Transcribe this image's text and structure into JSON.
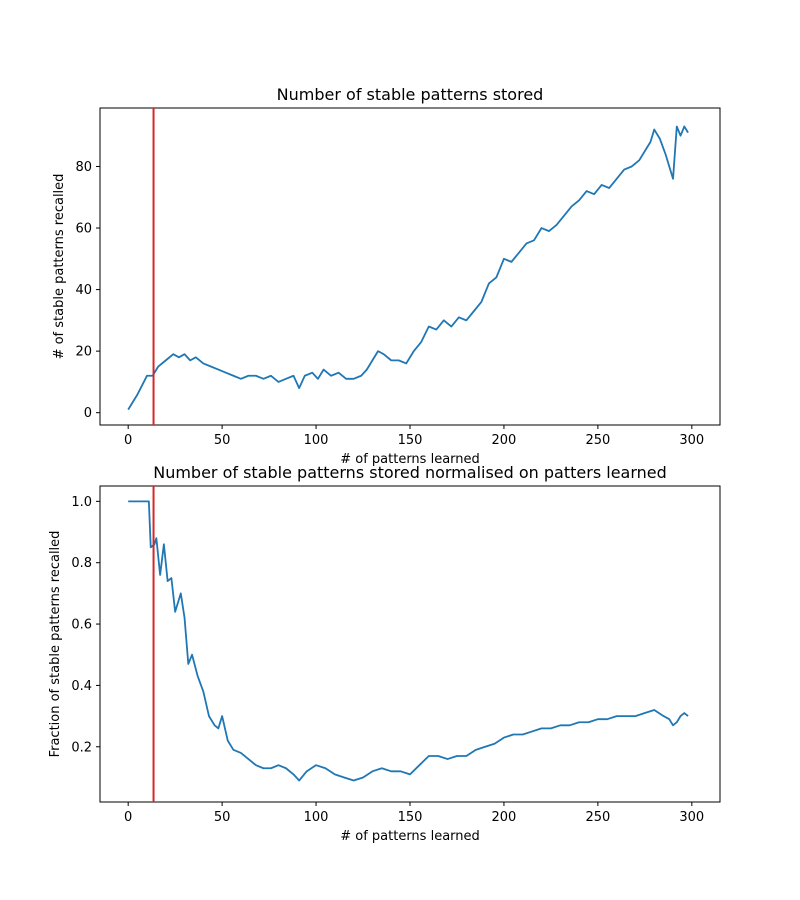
{
  "chart_data": [
    {
      "type": "line",
      "title": "Number of stable patterns stored",
      "xlabel": "# of patterns learned",
      "ylabel": "# of stable patterns recalled",
      "xlim": [
        -15,
        315
      ],
      "ylim": [
        -4,
        99
      ],
      "xticks": [
        0,
        50,
        100,
        150,
        200,
        250,
        300
      ],
      "yticks": [
        0,
        20,
        40,
        60,
        80
      ],
      "grid": false,
      "line_color": "#1f77b4",
      "vline": {
        "x": 13.5,
        "color": "#d62728"
      },
      "x": [
        0,
        5,
        10,
        13,
        16,
        20,
        24,
        27,
        30,
        33,
        36,
        40,
        44,
        48,
        52,
        56,
        60,
        64,
        68,
        72,
        76,
        80,
        84,
        88,
        91,
        94,
        98,
        101,
        104,
        108,
        112,
        116,
        120,
        124,
        127,
        130,
        133,
        136,
        140,
        144,
        148,
        152,
        156,
        160,
        164,
        168,
        172,
        176,
        180,
        184,
        188,
        192,
        196,
        200,
        204,
        208,
        212,
        216,
        220,
        224,
        228,
        232,
        236,
        240,
        244,
        248,
        252,
        256,
        260,
        264,
        268,
        272,
        276,
        278,
        280,
        283,
        286,
        288,
        290,
        292,
        294,
        296,
        298
      ],
      "series": [
        {
          "values": [
            1,
            6,
            12,
            12,
            15,
            17,
            19,
            18,
            19,
            17,
            18,
            16,
            15,
            14,
            13,
            12,
            11,
            12,
            12,
            11,
            12,
            10,
            11,
            12,
            8,
            12,
            13,
            11,
            14,
            12,
            13,
            11,
            11,
            12,
            14,
            17,
            20,
            19,
            17,
            17,
            16,
            20,
            23,
            28,
            27,
            30,
            28,
            31,
            30,
            33,
            36,
            42,
            44,
            50,
            49,
            52,
            55,
            56,
            60,
            59,
            61,
            64,
            67,
            69,
            72,
            71,
            74,
            73,
            76,
            79,
            80,
            82,
            86,
            88,
            92,
            89,
            84,
            80,
            76,
            93,
            90,
            93,
            91
          ]
        }
      ]
    },
    {
      "type": "line",
      "title": "Number of stable patterns stored normalised on patters learned",
      "xlabel": "# of patterns learned",
      "ylabel": "Fraction of stable patterns recalled",
      "xlim": [
        -15,
        315
      ],
      "ylim": [
        0.02,
        1.05
      ],
      "xticks": [
        0,
        50,
        100,
        150,
        200,
        250,
        300
      ],
      "yticks": [
        0.2,
        0.4,
        0.6,
        0.8,
        1.0
      ],
      "grid": false,
      "line_color": "#1f77b4",
      "vline": {
        "x": 13.5,
        "color": "#d62728"
      },
      "x": [
        0,
        4,
        8,
        11,
        12,
        14,
        15,
        17,
        19,
        21,
        23,
        25,
        28,
        30,
        32,
        34,
        37,
        40,
        43,
        46,
        48,
        50,
        53,
        56,
        60,
        64,
        68,
        72,
        76,
        80,
        84,
        88,
        91,
        95,
        100,
        105,
        110,
        115,
        120,
        125,
        130,
        135,
        140,
        145,
        150,
        155,
        160,
        165,
        170,
        175,
        180,
        185,
        190,
        195,
        200,
        205,
        210,
        215,
        220,
        225,
        230,
        235,
        240,
        245,
        250,
        255,
        260,
        265,
        270,
        275,
        280,
        285,
        288,
        290,
        292,
        294,
        296,
        298
      ],
      "series": [
        {
          "values": [
            1.0,
            1.0,
            1.0,
            1.0,
            0.85,
            0.86,
            0.88,
            0.76,
            0.86,
            0.74,
            0.75,
            0.64,
            0.7,
            0.62,
            0.47,
            0.5,
            0.43,
            0.38,
            0.3,
            0.27,
            0.26,
            0.3,
            0.22,
            0.19,
            0.18,
            0.16,
            0.14,
            0.13,
            0.13,
            0.14,
            0.13,
            0.11,
            0.09,
            0.12,
            0.14,
            0.13,
            0.11,
            0.1,
            0.09,
            0.1,
            0.12,
            0.13,
            0.12,
            0.12,
            0.11,
            0.14,
            0.17,
            0.17,
            0.16,
            0.17,
            0.17,
            0.19,
            0.2,
            0.21,
            0.23,
            0.24,
            0.24,
            0.25,
            0.26,
            0.26,
            0.27,
            0.27,
            0.28,
            0.28,
            0.29,
            0.29,
            0.3,
            0.3,
            0.3,
            0.31,
            0.32,
            0.3,
            0.29,
            0.27,
            0.28,
            0.3,
            0.31,
            0.3
          ]
        }
      ]
    }
  ]
}
